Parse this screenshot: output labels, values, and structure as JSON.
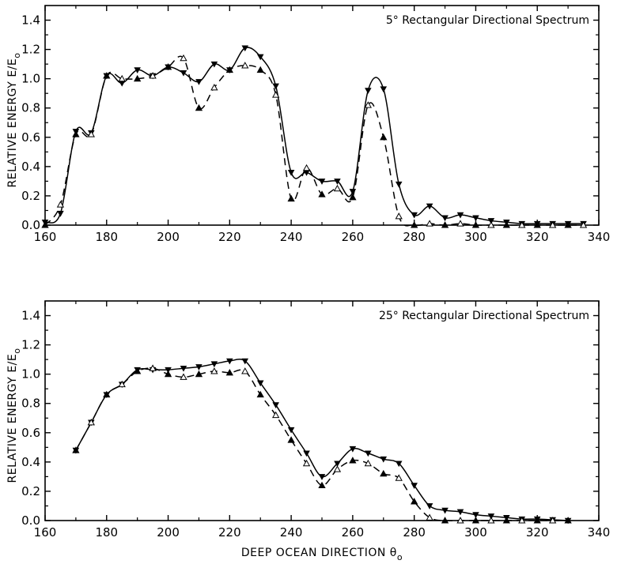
{
  "chart_data": [
    {
      "type": "line",
      "title": "5° Rectangular Directional Spectrum",
      "xlabel": "",
      "ylabel_main": "RELATIVE ENERGY  E/E",
      "ylabel_sub": "o",
      "xlim": [
        160,
        340
      ],
      "ylim": [
        0,
        1.5
      ],
      "xticks": [
        "160",
        "180",
        "200",
        "220",
        "240",
        "260",
        "280",
        "300",
        "320",
        "340"
      ],
      "yticks": [
        "0.0",
        "0.2",
        "0.4",
        "0.6",
        "0.8",
        "1.0",
        "1.2",
        "1.4"
      ],
      "grid": false,
      "series": [
        {
          "line_style": "solid",
          "marker": "filled-down-triangle",
          "x": [
            160,
            165,
            170,
            175,
            180,
            185,
            190,
            195,
            200,
            205,
            210,
            215,
            220,
            225,
            230,
            235,
            240,
            245,
            250,
            255,
            260,
            265,
            270,
            275,
            280,
            285,
            290,
            295,
            300,
            305,
            310,
            315,
            320,
            325,
            330,
            335
          ],
          "y": [
            0.02,
            0.08,
            0.64,
            0.63,
            1.02,
            0.97,
            1.06,
            1.02,
            1.08,
            1.04,
            0.98,
            1.1,
            1.06,
            1.21,
            1.15,
            0.95,
            0.36,
            0.36,
            0.3,
            0.3,
            0.23,
            0.92,
            0.93,
            0.28,
            0.07,
            0.13,
            0.05,
            0.07,
            0.05,
            0.03,
            0.02,
            0.01,
            0.01,
            0.01,
            0.01,
            0.01
          ]
        },
        {
          "line_style": "dashed",
          "marker": "triangle-alternating",
          "x": [
            160,
            165,
            170,
            175,
            180,
            185,
            190,
            195,
            200,
            205,
            210,
            215,
            220,
            225,
            230,
            235,
            240,
            245,
            250,
            255,
            260,
            265,
            270,
            275,
            280,
            285,
            290,
            295,
            300,
            305,
            310,
            315,
            320,
            325,
            330,
            335
          ],
          "y": [
            0.0,
            0.14,
            0.62,
            0.62,
            1.02,
            1.0,
            1.0,
            1.02,
            1.08,
            1.14,
            0.8,
            0.94,
            1.06,
            1.09,
            1.06,
            0.89,
            0.18,
            0.39,
            0.21,
            0.25,
            0.19,
            0.82,
            0.6,
            0.06,
            0.0,
            0.01,
            0.0,
            0.01,
            0.0,
            0.0,
            0.0,
            0.0,
            0.0,
            0.0,
            0.0,
            0.0
          ]
        }
      ]
    },
    {
      "type": "line",
      "title": "25° Rectangular Directional Spectrum",
      "xlabel_main": "DEEP OCEAN DIRECTION  θ",
      "xlabel_sub": "o",
      "ylabel_main": "RELATIVE ENERGY  E/E",
      "ylabel_sub": "o",
      "xlim": [
        160,
        340
      ],
      "ylim": [
        0,
        1.5
      ],
      "xticks": [
        "160",
        "180",
        "200",
        "220",
        "240",
        "260",
        "280",
        "300",
        "320",
        "340"
      ],
      "yticks": [
        "0.0",
        "0.2",
        "0.4",
        "0.6",
        "0.8",
        "1.0",
        "1.2",
        "1.4"
      ],
      "grid": false,
      "series": [
        {
          "line_style": "solid",
          "marker": "filled-down-triangle",
          "x": [
            170,
            175,
            180,
            185,
            190,
            195,
            200,
            205,
            210,
            215,
            220,
            225,
            230,
            235,
            240,
            245,
            250,
            255,
            260,
            265,
            270,
            275,
            280,
            285,
            290,
            295,
            300,
            305,
            310,
            315,
            320,
            325,
            330
          ],
          "y": [
            0.48,
            0.67,
            0.86,
            0.93,
            1.03,
            1.03,
            1.03,
            1.04,
            1.05,
            1.07,
            1.09,
            1.09,
            0.94,
            0.79,
            0.62,
            0.46,
            0.3,
            0.39,
            0.49,
            0.46,
            0.42,
            0.39,
            0.24,
            0.1,
            0.07,
            0.06,
            0.04,
            0.03,
            0.02,
            0.01,
            0.01,
            0.005,
            0.0
          ]
        },
        {
          "line_style": "dashed",
          "marker": "triangle-alternating",
          "x": [
            170,
            175,
            180,
            185,
            190,
            195,
            200,
            205,
            210,
            215,
            220,
            225,
            230,
            235,
            240,
            245,
            250,
            255,
            260,
            265,
            270,
            275,
            280,
            285,
            290,
            295,
            300,
            305,
            310,
            315,
            320,
            325,
            330
          ],
          "y": [
            0.48,
            0.67,
            0.86,
            0.93,
            1.02,
            1.04,
            1.0,
            0.98,
            1.0,
            1.02,
            1.01,
            1.02,
            0.86,
            0.72,
            0.55,
            0.39,
            0.24,
            0.35,
            0.41,
            0.39,
            0.32,
            0.29,
            0.13,
            0.02,
            0.0,
            0.0,
            0.0,
            0.0,
            0.0,
            0.0,
            0.0,
            0.0,
            0.0
          ]
        }
      ]
    }
  ]
}
